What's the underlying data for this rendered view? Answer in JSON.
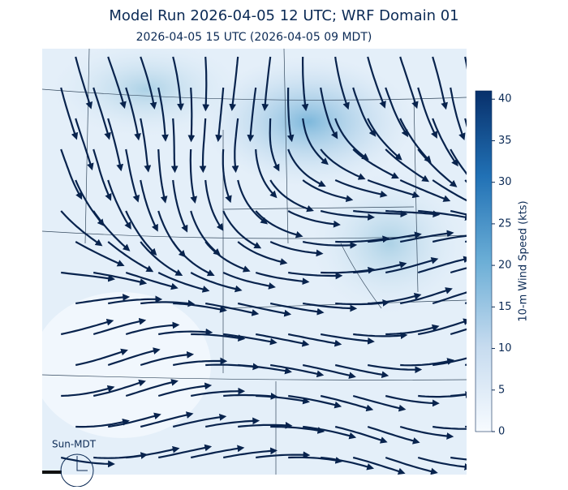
{
  "header": {
    "title": "Model Run 2026-04-05 12 UTC; WRF Domain 01",
    "subtitle": "2026-04-05 15 UTC  (2026-04-05 09 MDT)"
  },
  "colorbar": {
    "label": "10-m Wind Speed (kts)",
    "lim": [
      0,
      41
    ],
    "ticks": [
      0,
      5,
      10,
      15,
      20,
      25,
      30,
      35,
      40
    ],
    "colors": [
      "#f7fbff",
      "#c6dbef",
      "#6baed6",
      "#2171b5",
      "#08306b"
    ]
  },
  "clock": {
    "label": "Sun-MDT"
  }
}
